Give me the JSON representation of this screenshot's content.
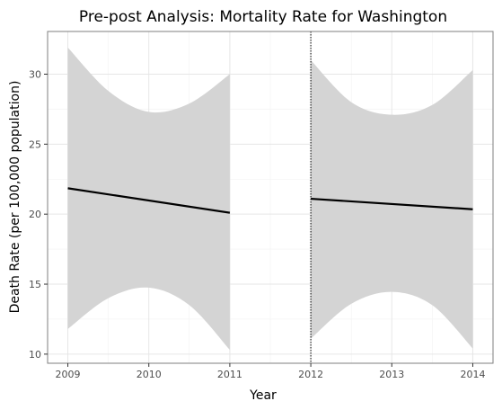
{
  "chart_data": {
    "type": "line",
    "title": "Pre-post Analysis: Mortality Rate for Washington",
    "xlabel": "Year",
    "ylabel": "Death Rate (per 100,000 population)",
    "xlim": [
      2008.75,
      2014.25
    ],
    "ylim": [
      9.35,
      33.05
    ],
    "x_ticks": [
      2009,
      2010,
      2011,
      2012,
      2013,
      2014
    ],
    "y_ticks": [
      10,
      15,
      20,
      25,
      30
    ],
    "grid": true,
    "intervention_x": 2012,
    "colors": {
      "line": "#000000",
      "band": "#d4d4d4",
      "grid_major": "#e6e6e6",
      "grid_minor": "#f2f2f2",
      "border": "#7f7f7f"
    },
    "series": [
      {
        "segment": "pre",
        "x": [
          2009,
          2009.5,
          2010,
          2010.5,
          2011
        ],
        "y": [
          21.85,
          21.4,
          20.95,
          20.5,
          20.1
        ],
        "lower": [
          11.8,
          14.0,
          14.75,
          13.5,
          10.3
        ],
        "upper": [
          31.9,
          28.8,
          27.3,
          27.9,
          30.0
        ]
      },
      {
        "segment": "post",
        "x": [
          2012,
          2012.5,
          2013,
          2013.5,
          2014
        ],
        "y": [
          21.1,
          20.9,
          20.7,
          20.5,
          20.35
        ],
        "lower": [
          11.1,
          13.6,
          14.45,
          13.5,
          10.4
        ],
        "upper": [
          31.0,
          28.0,
          27.1,
          27.8,
          30.3
        ]
      }
    ]
  }
}
